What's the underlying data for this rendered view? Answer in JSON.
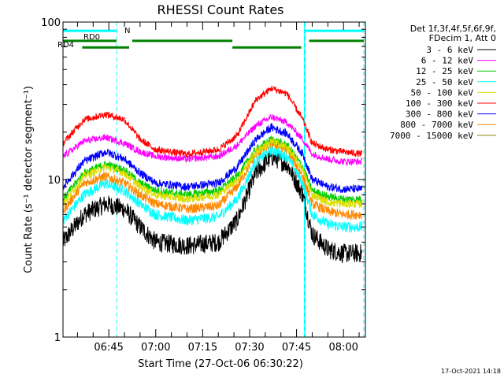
{
  "chart_data": {
    "type": "line",
    "title": "RHESSI Count Rates",
    "xlabel": "Start Time (27-Oct-06 06:30:22)",
    "ylabel": "Count Rate (s⁻¹ detector segment⁻¹)",
    "y_scale": "log",
    "ylim": [
      1,
      100
    ],
    "xlim": [
      "06:30:22",
      "08:07:00"
    ],
    "x_ticks": [
      "06:45",
      "07:00",
      "07:15",
      "07:30",
      "07:45",
      "08:00"
    ],
    "y_ticks": [
      "1",
      "10",
      "100"
    ],
    "legend_header": [
      "Det 1f,3f,4f,5f,6f,9f,",
      "FDecim 1, Att 0"
    ],
    "legend_placement": "right",
    "grid": false,
    "series": [
      {
        "name": "3 - 6 keV",
        "color": "#000000",
        "x": [
          "06:30:22",
          "06:37",
          "06:44",
          "06:50",
          "06:55",
          "07:00",
          "07:10",
          "07:20",
          "07:26",
          "07:32",
          "07:37",
          "07:42",
          "07:47",
          "07:50",
          "07:55",
          "08:00",
          "08:06"
        ],
        "y": [
          4.0,
          6.0,
          7.0,
          6.5,
          5.0,
          4.0,
          3.8,
          4.0,
          5.5,
          11.0,
          14.0,
          12.5,
          8.0,
          4.5,
          3.6,
          3.4,
          3.4
        ]
      },
      {
        "name": "6 - 12 keV",
        "color": "#ff00ff",
        "x": [
          "06:30:22",
          "06:37",
          "06:44",
          "06:50",
          "06:55",
          "07:00",
          "07:10",
          "07:20",
          "07:26",
          "07:32",
          "07:37",
          "07:42",
          "07:47",
          "07:50",
          "07:55",
          "08:00",
          "08:06"
        ],
        "y": [
          14.0,
          17.5,
          18.5,
          17.0,
          15.0,
          14.0,
          13.5,
          14.0,
          16.5,
          22.0,
          25.0,
          23.0,
          18.0,
          14.5,
          13.5,
          13.0,
          13.0
        ]
      },
      {
        "name": "12 - 25 keV",
        "color": "#00cc00",
        "x": [
          "06:30:22",
          "06:37",
          "06:44",
          "06:50",
          "06:55",
          "07:00",
          "07:10",
          "07:20",
          "07:26",
          "07:32",
          "07:37",
          "07:42",
          "07:47",
          "07:50",
          "07:55",
          "08:00",
          "08:06"
        ],
        "y": [
          7.5,
          11.0,
          12.5,
          11.5,
          9.5,
          8.5,
          8.0,
          8.5,
          10.5,
          15.5,
          18.0,
          16.5,
          12.0,
          8.5,
          7.8,
          7.5,
          7.5
        ]
      },
      {
        "name": "25 - 50 keV",
        "color": "#00ffff",
        "x": [
          "06:30:22",
          "06:37",
          "06:44",
          "06:50",
          "06:55",
          "07:00",
          "07:10",
          "07:20",
          "07:26",
          "07:32",
          "07:37",
          "07:42",
          "07:47",
          "07:50",
          "07:55",
          "08:00",
          "08:06"
        ],
        "y": [
          5.5,
          8.0,
          9.5,
          8.5,
          7.0,
          6.0,
          5.5,
          5.8,
          7.5,
          13.0,
          15.5,
          14.0,
          9.5,
          6.0,
          5.2,
          5.0,
          5.0
        ]
      },
      {
        "name": "50 - 100 keV",
        "color": "#dddd00",
        "x": [
          "06:30:22",
          "06:37",
          "06:44",
          "06:50",
          "06:55",
          "07:00",
          "07:10",
          "07:20",
          "07:26",
          "07:32",
          "07:37",
          "07:42",
          "07:47",
          "07:50",
          "07:55",
          "08:00",
          "08:06"
        ],
        "y": [
          7.0,
          10.5,
          12.0,
          11.0,
          9.0,
          8.0,
          7.5,
          8.0,
          10.0,
          15.0,
          17.5,
          16.0,
          11.5,
          8.0,
          7.2,
          7.0,
          7.0
        ]
      },
      {
        "name": "100 - 300 keV",
        "color": "#ff0000",
        "x": [
          "06:30:22",
          "06:37",
          "06:44",
          "06:50",
          "06:55",
          "07:00",
          "07:10",
          "07:20",
          "07:26",
          "07:32",
          "07:37",
          "07:42",
          "07:47",
          "07:50",
          "07:55",
          "08:00",
          "08:06"
        ],
        "y": [
          17.0,
          24.0,
          26.0,
          24.0,
          18.0,
          15.5,
          14.5,
          15.5,
          19.0,
          32.0,
          38.0,
          35.0,
          24.0,
          17.0,
          15.5,
          15.0,
          14.5
        ]
      },
      {
        "name": "300 - 800 keV",
        "color": "#0000ff",
        "x": [
          "06:30:22",
          "06:37",
          "06:44",
          "06:50",
          "06:55",
          "07:00",
          "07:10",
          "07:20",
          "07:26",
          "07:32",
          "07:37",
          "07:42",
          "07:47",
          "07:50",
          "07:55",
          "08:00",
          "08:06"
        ],
        "y": [
          9.0,
          13.0,
          15.0,
          13.5,
          11.0,
          9.5,
          9.0,
          9.5,
          12.0,
          18.0,
          21.5,
          19.5,
          14.5,
          10.0,
          9.0,
          8.7,
          8.7
        ]
      },
      {
        "name": "800 - 7000 keV",
        "color": "#ff8800",
        "x": [
          "06:30:22",
          "06:37",
          "06:44",
          "06:50",
          "06:55",
          "07:00",
          "07:10",
          "07:20",
          "07:26",
          "07:32",
          "07:37",
          "07:42",
          "07:47",
          "07:50",
          "07:55",
          "08:00",
          "08:06"
        ],
        "y": [
          6.3,
          9.5,
          10.5,
          9.5,
          8.0,
          7.0,
          6.5,
          6.8,
          9.0,
          14.5,
          17.0,
          15.5,
          10.5,
          7.0,
          6.3,
          6.0,
          6.0
        ]
      },
      {
        "name": "7000 - 15000 keV",
        "color": "#808000",
        "x": [],
        "y": []
      }
    ],
    "annotations": [
      {
        "label": "RD0",
        "color": "#008000",
        "segments": [
          [
            "06:30:22",
            "06:47:30"
          ],
          [
            "06:52:30",
            "07:24:30"
          ],
          [
            "07:49:00",
            "08:06:30"
          ]
        ],
        "level": 76
      },
      {
        "label": "RD4",
        "color": "#008000",
        "segments": [
          [
            "06:36:30",
            "06:51:30"
          ],
          [
            "07:24:30",
            "07:46:30"
          ]
        ],
        "level": 69
      },
      {
        "label": "N",
        "color": "#00ffff",
        "segments": [
          [
            "06:30:22",
            "06:47:30"
          ],
          [
            "07:47:30",
            "08:06:30"
          ]
        ],
        "level": 88
      }
    ],
    "night_boundaries": [
      {
        "time": "06:47:30",
        "style": "dashed"
      },
      {
        "time": "07:47:30",
        "style": "solid"
      },
      {
        "time": "07:47:30",
        "style": "dashed",
        "offset": 1
      },
      {
        "time": "08:06:30",
        "style": "dashed"
      }
    ]
  },
  "footer": {
    "timestamp": "17-Oct-2021 14:18"
  }
}
